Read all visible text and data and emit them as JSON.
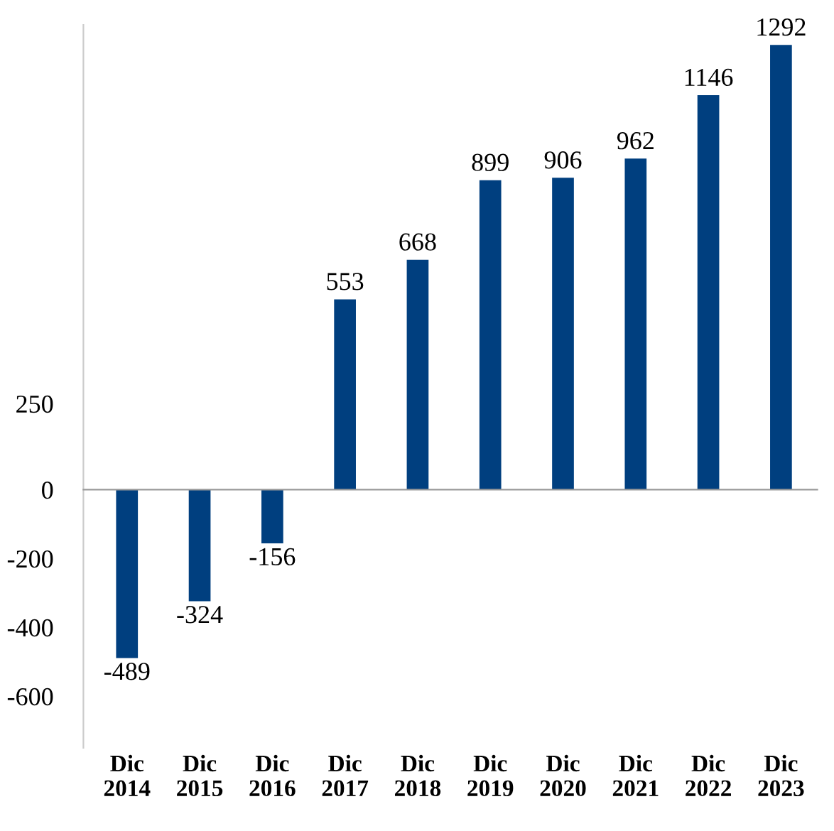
{
  "chart_data": {
    "type": "bar",
    "categories": [
      "Dic\n2014",
      "Dic\n2015",
      "Dic\n2016",
      "Dic\n2017",
      "Dic\n2018",
      "Dic\n2019",
      "Dic\n2020",
      "Dic\n2021",
      "Dic\n2022",
      "Dic\n2023"
    ],
    "values": [
      -489,
      -324,
      -156,
      553,
      668,
      899,
      906,
      962,
      1146,
      1292
    ],
    "color": "#003f7f",
    "ylim": [
      -750,
      1350
    ],
    "yticks": [
      -600,
      -400,
      -200,
      0,
      250
    ],
    "data_labels": true,
    "legend": false
  }
}
